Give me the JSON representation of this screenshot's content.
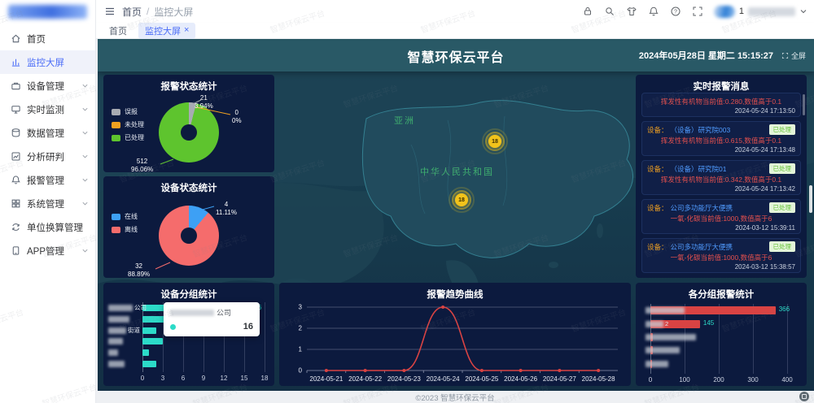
{
  "colors": {
    "accent_blue": "#4a6cf7",
    "dash_header": "#295966",
    "panel_bg": "#0c1a3e",
    "teal": "#2cdbc8",
    "green": "#5ec42e",
    "gray": "#a8abb2",
    "orange": "#f0a020",
    "blue": "#3da0f5",
    "red_soft": "#f56c6c",
    "red": "#d94343",
    "msg_red": "#e3504e",
    "device_blue": "#4f9bff",
    "badge_green": "#67c23a",
    "badge_bg": "#e3f5d9",
    "marker_yellow": "#f2c31b",
    "map_label": "#3fae6f"
  },
  "watermark": "智慧环保云平台",
  "topbar": {
    "breadcrumb": [
      "首页",
      "监控大屏"
    ],
    "breadcrumb_separator": "/",
    "user_number": "1"
  },
  "tabs": [
    {
      "key": "home",
      "label": "首页",
      "active": false,
      "closable": false
    },
    {
      "key": "monitor-screen",
      "label": "监控大屏",
      "active": true,
      "closable": true
    }
  ],
  "tab_close_glyph": "×",
  "sidebar": {
    "items": [
      {
        "key": "home",
        "label": "首页",
        "icon": "home-icon",
        "chevron": false,
        "active": false
      },
      {
        "key": "monitor-screen",
        "label": "监控大屏",
        "icon": "dashboard-icon",
        "chevron": false,
        "active": true
      },
      {
        "key": "device-mgmt",
        "label": "设备管理",
        "icon": "device-icon",
        "chevron": true,
        "active": false
      },
      {
        "key": "realtime-monitor",
        "label": "实时监测",
        "icon": "monitor-icon",
        "chevron": true,
        "active": false
      },
      {
        "key": "data-mgmt",
        "label": "数据管理",
        "icon": "database-icon",
        "chevron": true,
        "active": false
      },
      {
        "key": "analysis",
        "label": "分析研判",
        "icon": "analysis-icon",
        "chevron": true,
        "active": false
      },
      {
        "key": "alarm-mgmt",
        "label": "报警管理",
        "icon": "bell-icon",
        "chevron": true,
        "active": false
      },
      {
        "key": "system-mgmt",
        "label": "系统管理",
        "icon": "system-icon",
        "chevron": true,
        "active": false
      },
      {
        "key": "unit-convert",
        "label": "单位换算管理",
        "icon": "convert-icon",
        "chevron": false,
        "active": false
      },
      {
        "key": "app-mgmt",
        "label": "APP管理",
        "icon": "app-icon",
        "chevron": true,
        "active": false
      }
    ]
  },
  "dashboard": {
    "title": "智慧环保云平台",
    "datetime": "2024年05月28日 星期二 15:15:27",
    "fullscreen_label": "全屏",
    "footer": "©2023 智慧环保云平台",
    "map": {
      "region_labels": [
        "亚洲",
        "中华人民共和国"
      ],
      "markers": [
        {
          "value": "18"
        },
        {
          "value": "18"
        }
      ]
    }
  },
  "messages": {
    "title": "实时报警消息",
    "device_label": "设备：",
    "items": [
      {
        "device": "",
        "badge": "",
        "text": "挥发性有机物当前值:0.280,数值高于0.1",
        "time": "2024-05-24 17:13:50"
      },
      {
        "device": "（设备）研究院003",
        "badge": "已处理",
        "text": "挥发性有机物当前值:0.615,数值高于0.1",
        "time": "2024-05-24 17:13:48"
      },
      {
        "device": "（设备）研究院01",
        "badge": "已处理",
        "text": "挥发性有机物当前值:0.342,数值高于0.1",
        "time": "2024-05-24 17:13:42"
      },
      {
        "device": "公司多功能厅大便携",
        "badge": "已处理",
        "text": "一氧-化碳当前值:1000,数值高于6",
        "time": "2024-03-12 15:39:11"
      },
      {
        "device": "公司多功能厅大便携",
        "badge": "已处理",
        "text": "一氧-化碳当前值:1000,数值高于6",
        "time": "2024-03-12 15:38:57"
      },
      {
        "device": "公司多功能厅大便携",
        "badge": "已处理",
        "text": "一氧-化碳当前值:1000,数值高于6",
        "time": "2024-03-12 15:38:42"
      }
    ]
  },
  "chart_data": [
    {
      "id": "alarm_status",
      "type": "pie",
      "title": "报警状态统计",
      "legend": [
        "误报",
        "未处理",
        "已处理"
      ],
      "legend_position": "left",
      "series": [
        {
          "name": "误报",
          "value": 21,
          "percent": "3.94%",
          "color_key": "gray"
        },
        {
          "name": "未处理",
          "value": 0,
          "percent": "0%",
          "color_key": "orange"
        },
        {
          "name": "已处理",
          "value": 512,
          "percent": "96.06%",
          "color_key": "green"
        }
      ]
    },
    {
      "id": "device_status",
      "type": "pie",
      "title": "设备状态统计",
      "legend": [
        "在线",
        "离线"
      ],
      "legend_position": "left",
      "series": [
        {
          "name": "在线",
          "value": 4,
          "percent": "11.11%",
          "color_key": "blue"
        },
        {
          "name": "离线",
          "value": 32,
          "percent": "88.89%",
          "color_key": "red_soft"
        }
      ]
    },
    {
      "id": "device_groups",
      "type": "bar",
      "title": "设备分组统计",
      "orientation": "horizontal",
      "color_key": "teal",
      "xlim": [
        0,
        18
      ],
      "x_ticks": [
        0,
        3,
        6,
        9,
        12,
        15,
        18
      ],
      "grid": true,
      "items": [
        {
          "label_blurred": true,
          "label_suffix": "公司",
          "value": 16,
          "show_value": true
        },
        {
          "label_blurred": true,
          "label_suffix": "",
          "value": 14,
          "show_value": false
        },
        {
          "label_blurred": true,
          "label_suffix": "街道",
          "value": 2,
          "show_value": false
        },
        {
          "label_blurred": true,
          "label_suffix": "",
          "value": 3,
          "show_value": false
        },
        {
          "label_blurred": true,
          "label_suffix": "",
          "value": 1,
          "show_value": false
        },
        {
          "label_blurred": true,
          "label_suffix": "",
          "value": 2,
          "show_value": false
        }
      ],
      "tooltip": {
        "name_blurred": true,
        "name_suffix": "公司",
        "value": 16
      }
    },
    {
      "id": "alarm_trend",
      "type": "line",
      "title": "报警趋势曲线",
      "color_key": "red",
      "smooth": true,
      "x": [
        "2024-05-21",
        "2024-05-22",
        "2024-05-23",
        "2024-05-24",
        "2024-05-25",
        "2024-05-26",
        "2024-05-27",
        "2024-05-28"
      ],
      "values": [
        0,
        0,
        0,
        3,
        0,
        0,
        0,
        0
      ],
      "ylim": [
        0,
        3
      ],
      "y_ticks": [
        0,
        1,
        2,
        3
      ],
      "grid": true
    },
    {
      "id": "group_alarms",
      "type": "bar",
      "title": "各分组报警统计",
      "orientation": "horizontal",
      "color_key": "red",
      "xlim": [
        0,
        400
      ],
      "x_ticks": [
        0,
        100,
        200,
        300,
        400
      ],
      "grid": true,
      "items": [
        {
          "label_blurred": true,
          "label_suffix": "",
          "value": 366,
          "show_value": true
        },
        {
          "label_blurred": true,
          "label_suffix": "2",
          "value": 145,
          "show_value": true
        },
        {
          "label_blurred": true,
          "label_suffix": "",
          "value": 8,
          "show_value": false
        },
        {
          "label_blurred": true,
          "label_suffix": "",
          "value": 6,
          "show_value": false
        },
        {
          "label_blurred": true,
          "label_suffix": "",
          "value": 4,
          "show_value": false
        }
      ]
    }
  ]
}
